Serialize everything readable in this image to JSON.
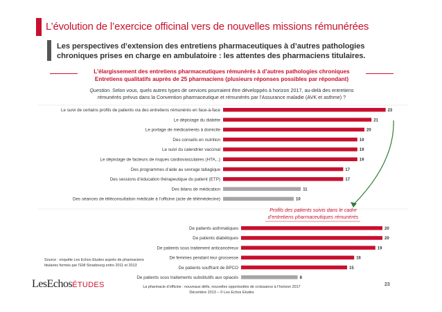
{
  "header": {
    "title": "L’évolution de l’exercice officinal vers de nouvelles missions  rémunérées",
    "subtitle_line1": "Les perspectives d’extension des entretiens pharmaceutiques à d’autres pathologies",
    "subtitle_line2": "chroniques prises en charge en ambulatoire : les attentes des pharmaciens titulaires."
  },
  "section": {
    "heading_line1": "L’élargissement des entretiens pharmaceutiques rémunérés à d’autres pathologies chroniques",
    "heading_line2": "Entretiens qualitatifs auprès de 25 pharmaciens (plusieurs réponses possibles par répondant)",
    "question_label": "Question.",
    "question_line1": " Selon vous, quels autres types de services pourraient être développés à horizon 2017, au-delà des entretiens",
    "question_line2": "rémunérés prévus dans la Convention pharmaceutique et rémunérés par l’Assurance maladie (AVK et asthme) ?"
  },
  "colors": {
    "accent": "#c8102e",
    "grey_bar": "#a6a6a6"
  },
  "chart_data": [
    {
      "type": "bar",
      "orientation": "horizontal",
      "categories": [
        "Le suivi de certains profils de patients via des entretiens rémunérés en face-à-face",
        "Le dépistage du diabète",
        "Le portage de médicaments à domicile",
        "Des conseils en nutrition",
        "Le suivi du calendrier vaccinal",
        "Le dépistage de facteurs de risques cardiovasculaires (HTA,..)",
        "Des programmes d’aide au sevrage tabagique",
        "Des sessions d’éducation thérapeutique du patient (ETP)",
        "Des bilans de médication",
        "Des séances de téléconsultation médicale à l’officine (acte de télémédecine)"
      ],
      "values": [
        23,
        21,
        20,
        19,
        19,
        19,
        17,
        17,
        11,
        10
      ],
      "colors": [
        "red",
        "red",
        "red",
        "red",
        "red",
        "red",
        "red",
        "red",
        "grey",
        "grey"
      ],
      "xlim": [
        0,
        25
      ]
    },
    {
      "type": "bar",
      "orientation": "horizontal",
      "title_line1": "Profils des patients suivis dans le cadre",
      "title_line2": "d’entretiens pharmaceutiques rémunérés",
      "categories": [
        "De patients asthmatiques",
        "De patients diabétiques",
        "De patients sous traitement anticancéreux",
        "De femmes pendant leur grossesse",
        "De patients souffrant de BPCO",
        "De patients sous traitements substitutifs aux opiacés"
      ],
      "values": [
        20,
        20,
        19,
        16,
        15,
        8
      ],
      "colors": [
        "red",
        "red",
        "red",
        "red",
        "red",
        "grey"
      ],
      "xlim": [
        0,
        25
      ]
    }
  ],
  "source": {
    "line1": "Source : enquête Les Echos Etudes auprès de pharmaciens",
    "line2": "titulaires formés par l’EM Strasbourg entre 2011 et 2013"
  },
  "footer": {
    "logo_main": "LesEchos",
    "logo_sub": "ÉTUDES",
    "line1": "La pharmacie d’officine : nouveaux défis, nouvelles opportunités de croissance à l’horizon 2017",
    "line2": "Décembre 2013  –  © Les Echos Etudes",
    "page_number": "23"
  }
}
